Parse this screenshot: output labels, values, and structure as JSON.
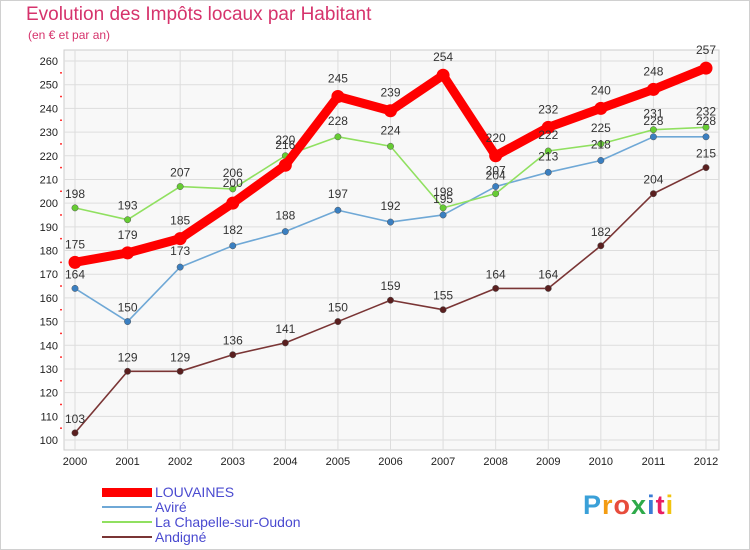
{
  "header": {
    "title": "Evolution des Impôts locaux par Habitant",
    "subtitle": "(en € et par an)"
  },
  "logo": {
    "text": "Proxiti",
    "letter_colors": [
      "#3aa0d8",
      "#f39c12",
      "#e74c3c",
      "#2eaa4a",
      "#3a7bd5",
      "#e91e63",
      "#f1c40f"
    ]
  },
  "chart_data": {
    "type": "line",
    "title": "Evolution des Impôts locaux par Habitant",
    "subtitle": "(en € et par an)",
    "xlabel": "",
    "ylabel": "",
    "ylim": [
      100,
      260
    ],
    "ytick_step": 10,
    "grid": true,
    "legend_position": "bottom-left",
    "categories": [
      "2000",
      "2001",
      "2002",
      "2003",
      "2004",
      "2005",
      "2006",
      "2007",
      "2008",
      "2009",
      "2010",
      "2011",
      "2012"
    ],
    "series": [
      {
        "name": "LOUVAINES",
        "color": "#ff0000",
        "marker_color": "#ff0000",
        "emphasis": "bold",
        "values": [
          175,
          179,
          185,
          200,
          216,
          245,
          239,
          254,
          220,
          232,
          240,
          248,
          257
        ]
      },
      {
        "name": "Aviré",
        "color": "#6fa8d6",
        "marker_color": "#3a7fc1",
        "emphasis": "normal",
        "values": [
          164,
          150,
          173,
          182,
          188,
          197,
          192,
          195,
          207,
          213,
          218,
          228,
          228
        ]
      },
      {
        "name": "La Chapelle-sur-Oudon",
        "color": "#90e060",
        "marker_color": "#66cc33",
        "emphasis": "normal",
        "values": [
          198,
          193,
          207,
          206,
          220,
          228,
          224,
          198,
          204,
          222,
          225,
          231,
          232
        ]
      },
      {
        "name": "Andigné",
        "color": "#7a3535",
        "marker_color": "#5a1f1f",
        "emphasis": "normal",
        "values": [
          103,
          129,
          129,
          136,
          141,
          150,
          159,
          155,
          164,
          164,
          182,
          204,
          215
        ]
      }
    ]
  }
}
